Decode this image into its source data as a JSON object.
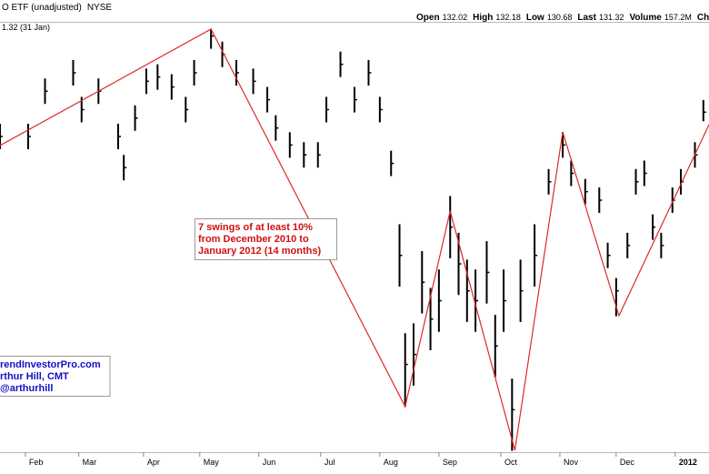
{
  "header": {
    "symbol": "O ETF (unadjusted)",
    "exchange": "NYSE",
    "note": "1.32 (31 Jan)",
    "quote": [
      {
        "label": "Open",
        "value": "132.02"
      },
      {
        "label": "High",
        "value": "132.18"
      },
      {
        "label": "Low",
        "value": "130.68"
      },
      {
        "label": "Last",
        "value": "131.32"
      },
      {
        "label": "Volume",
        "value": "157.2M"
      },
      {
        "label": "Chg",
        "value": ""
      }
    ]
  },
  "chart_data": {
    "type": "ohlc",
    "color": "#000000",
    "xlim": [
      0,
      252
    ],
    "ylim": [
      107.3,
      137.7
    ],
    "xticks": [
      {
        "value": 9,
        "label": "Feb"
      },
      {
        "value": 28,
        "label": "Mar"
      },
      {
        "value": 51,
        "label": "Apr"
      },
      {
        "value": 71,
        "label": "May"
      },
      {
        "value": 92,
        "label": "Jun"
      },
      {
        "value": 114,
        "label": "Jul"
      },
      {
        "value": 135,
        "label": "Aug"
      },
      {
        "value": 156,
        "label": "Sep"
      },
      {
        "value": 178,
        "label": "Oct"
      },
      {
        "value": 199,
        "label": "Nov"
      },
      {
        "value": 219,
        "label": "Dec"
      },
      {
        "value": 240,
        "label": "2012"
      }
    ],
    "x": [
      0,
      10,
      16,
      26,
      29,
      35,
      42,
      44,
      48,
      52,
      56,
      61,
      66,
      69,
      75,
      79,
      84,
      90,
      95,
      98,
      103,
      108,
      113,
      116,
      121,
      126,
      131,
      135,
      139,
      142,
      144,
      147,
      150,
      153,
      156,
      160,
      163,
      166,
      169,
      173,
      176,
      179,
      182,
      185,
      190,
      195,
      200,
      203,
      208,
      213,
      216,
      219,
      223,
      226,
      229,
      232,
      235,
      239,
      242,
      247,
      250
    ],
    "high": [
      130.5,
      130.5,
      133.7,
      135.0,
      132.4,
      133.7,
      130.5,
      128.3,
      131.8,
      134.4,
      134.7,
      134.0,
      132.4,
      135.0,
      137.2,
      136.3,
      135.0,
      134.4,
      133.1,
      131.1,
      129.9,
      129.2,
      129.2,
      132.4,
      135.6,
      133.1,
      135.0,
      132.4,
      128.6,
      123.4,
      115.7,
      116.4,
      121.5,
      118.9,
      120.2,
      125.4,
      122.8,
      120.9,
      120.2,
      122.2,
      117.0,
      120.2,
      112.5,
      120.9,
      123.4,
      127.3,
      129.9,
      127.9,
      126.6,
      126.0,
      122.1,
      119.6,
      122.8,
      127.3,
      127.9,
      124.1,
      122.8,
      126.0,
      127.3,
      129.2,
      132.18
    ],
    "low": [
      128.7,
      128.7,
      131.9,
      133.2,
      130.6,
      131.9,
      128.7,
      126.5,
      130.0,
      132.6,
      132.9,
      132.2,
      130.6,
      133.2,
      135.8,
      134.5,
      133.2,
      132.6,
      131.3,
      129.3,
      128.1,
      127.4,
      127.4,
      130.6,
      133.8,
      131.3,
      133.2,
      130.6,
      126.8,
      119.0,
      110.5,
      112.0,
      117.1,
      114.5,
      115.8,
      121.0,
      118.4,
      116.5,
      115.8,
      117.8,
      112.6,
      115.8,
      107.4,
      116.5,
      119.0,
      125.5,
      128.1,
      126.1,
      124.8,
      124.2,
      120.3,
      116.9,
      121.0,
      125.5,
      126.1,
      122.3,
      121.0,
      124.2,
      125.5,
      127.4,
      130.68
    ],
    "close": [
      129.6,
      129.6,
      132.8,
      134.1,
      131.5,
      132.8,
      129.6,
      127.4,
      130.9,
      133.5,
      133.8,
      133.1,
      131.5,
      134.1,
      136.7,
      135.4,
      134.1,
      133.5,
      132.2,
      130.2,
      129.0,
      128.3,
      128.3,
      131.5,
      134.7,
      132.2,
      134.1,
      131.5,
      127.7,
      121.2,
      113.5,
      114.2,
      119.3,
      116.7,
      118.0,
      123.2,
      120.6,
      118.7,
      118.0,
      120.0,
      114.8,
      118.0,
      110.3,
      118.7,
      121.2,
      126.4,
      129.0,
      127.0,
      125.7,
      125.1,
      121.2,
      118.7,
      121.9,
      126.4,
      127.0,
      123.2,
      121.9,
      125.1,
      126.4,
      128.3,
      131.32
    ],
    "zigzag": {
      "color": "#e02828",
      "x": [
        0,
        75,
        144,
        160,
        183,
        200,
        220,
        252
      ],
      "values": [
        128.96,
        137.19,
        110.52,
        124.33,
        107.43,
        129.92,
        116.94,
        130.44
      ]
    },
    "annotation": [
      "7 swings of at least 10%",
      "from December 2010 to",
      "January 2012 (14 months)"
    ],
    "credit": [
      "rendInvestorPro.com",
      "rthur Hill, CMT",
      "@arthurhill"
    ]
  }
}
